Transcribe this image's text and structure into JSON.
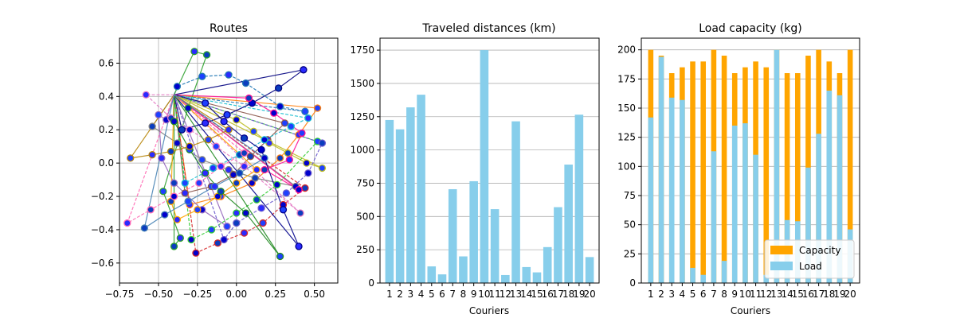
{
  "chart_data": [
    {
      "type": "scatter",
      "title": "Routes",
      "xlabel": "",
      "ylabel": "",
      "xlim": [
        -0.75,
        0.65
      ],
      "ylim": [
        -0.72,
        0.75
      ],
      "xticks": [
        -0.75,
        -0.5,
        -0.25,
        0.0,
        0.25,
        0.5
      ],
      "xtick_labels": [
        "−0.75",
        "−0.50",
        "−0.25",
        "0.00",
        "0.25",
        "0.50"
      ],
      "yticks": [
        -0.6,
        -0.4,
        -0.2,
        0.0,
        0.2,
        0.4,
        0.6
      ],
      "ytick_labels": [
        "−0.6",
        "−0.4",
        "−0.2",
        "0.0",
        "0.2",
        "0.4",
        "0.6"
      ],
      "grid": true,
      "depot": [
        -0.4,
        0.41
      ],
      "route_colors": [
        "#1f77b4",
        "#ff7f0e",
        "#2ca02c",
        "#d62728",
        "#9467bd",
        "#8c564b",
        "#e377c2",
        "#7f7f7f",
        "#bcbd22",
        "#17becf",
        "#000080",
        "#ff1493",
        "#32cd32",
        "#00008b",
        "#ffa500",
        "#6a5acd",
        "#228b22",
        "#b8860b",
        "#ff69b4",
        "#4682b4"
      ],
      "routes": [
        [
          [
            -0.38,
            0.46
          ],
          [
            -0.22,
            0.52
          ],
          [
            -0.05,
            0.53
          ],
          [
            0.06,
            0.48
          ],
          [
            0.28,
            0.34
          ],
          [
            0.44,
            0.31
          ]
        ],
        [
          [
            0.52,
            0.33
          ],
          [
            0.4,
            0.17
          ],
          [
            0.28,
            0.03
          ],
          [
            0.1,
            -0.12
          ],
          [
            -0.1,
            -0.2
          ],
          [
            -0.3,
            -0.25
          ]
        ],
        [
          [
            -0.27,
            0.67
          ],
          [
            -0.19,
            0.65
          ],
          [
            -0.31,
            0.33
          ],
          [
            -0.47,
            -0.17
          ],
          [
            -0.36,
            -0.45
          ],
          [
            -0.4,
            -0.5
          ]
        ],
        [
          [
            0.44,
            -0.15
          ],
          [
            0.3,
            -0.25
          ],
          [
            0.17,
            -0.36
          ],
          [
            0.05,
            -0.42
          ],
          [
            -0.12,
            -0.48
          ],
          [
            -0.26,
            -0.54
          ]
        ],
        [
          [
            -0.45,
            0.26
          ],
          [
            -0.5,
            0.29
          ],
          [
            -0.48,
            0.03
          ],
          [
            -0.4,
            -0.12
          ],
          [
            -0.22,
            -0.28
          ],
          [
            -0.06,
            -0.38
          ]
        ],
        [
          [
            0.31,
            0.24
          ],
          [
            0.2,
            0.14
          ],
          [
            0.09,
            0.04
          ],
          [
            -0.02,
            -0.07
          ],
          [
            -0.16,
            -0.14
          ],
          [
            -0.33,
            -0.18
          ]
        ],
        [
          [
            -0.58,
            0.41
          ],
          [
            -0.42,
            0.27
          ],
          [
            -0.3,
            0.2
          ],
          [
            -0.13,
            0.1
          ],
          [
            0.05,
            -0.02
          ],
          [
            0.41,
            -0.3
          ]
        ],
        [
          [
            -0.54,
            0.22
          ],
          [
            -0.38,
            0.12
          ],
          [
            -0.22,
            0.02
          ],
          [
            -0.05,
            -0.04
          ],
          [
            0.12,
            -0.09
          ],
          [
            0.38,
            -0.14
          ]
        ],
        [
          [
            0.0,
            0.26
          ],
          [
            0.11,
            0.19
          ],
          [
            0.21,
            0.12
          ],
          [
            0.33,
            0.06
          ],
          [
            0.45,
            0.0
          ],
          [
            0.55,
            -0.03
          ]
        ],
        [
          [
            -0.33,
            -0.12
          ],
          [
            -0.15,
            -0.03
          ],
          [
            0.02,
            0.05
          ],
          [
            0.18,
            0.14
          ],
          [
            0.35,
            0.22
          ],
          [
            0.46,
            0.27
          ]
        ],
        [
          [
            0.43,
            0.56
          ],
          [
            0.27,
            0.45
          ],
          [
            0.1,
            0.36
          ],
          [
            -0.06,
            0.29
          ],
          [
            -0.2,
            0.24
          ],
          [
            -0.35,
            0.2
          ]
        ],
        [
          [
            0.08,
            0.39
          ],
          [
            0.24,
            0.3
          ],
          [
            0.42,
            0.18
          ],
          [
            0.34,
            0.02
          ],
          [
            0.18,
            -0.04
          ],
          [
            0.4,
            -0.16
          ]
        ],
        [
          [
            -0.29,
            -0.46
          ],
          [
            -0.16,
            -0.4
          ],
          [
            0.0,
            -0.3
          ],
          [
            0.13,
            -0.22
          ],
          [
            0.26,
            -0.13
          ],
          [
            0.52,
            0.13
          ]
        ],
        [
          [
            -0.2,
            0.36
          ],
          [
            -0.08,
            0.25
          ],
          [
            0.05,
            0.15
          ],
          [
            0.16,
            0.08
          ],
          [
            0.3,
            -0.28
          ],
          [
            0.4,
            -0.5
          ]
        ],
        [
          [
            0.13,
            -0.04
          ],
          [
            0.0,
            -0.12
          ],
          [
            -0.12,
            -0.2
          ],
          [
            -0.25,
            -0.28
          ],
          [
            -0.38,
            -0.34
          ],
          [
            -0.42,
            -0.23
          ]
        ],
        [
          [
            0.55,
            0.12
          ],
          [
            0.46,
            -0.06
          ],
          [
            0.32,
            -0.18
          ],
          [
            0.16,
            -0.27
          ],
          [
            0.0,
            -0.36
          ],
          [
            -0.08,
            -0.46
          ]
        ],
        [
          [
            -0.4,
            0.25
          ],
          [
            -0.3,
            0.08
          ],
          [
            -0.2,
            -0.06
          ],
          [
            -0.1,
            -0.17
          ],
          [
            0.06,
            -0.3
          ],
          [
            0.28,
            -0.56
          ]
        ],
        [
          [
            -0.68,
            0.03
          ],
          [
            -0.54,
            0.05
          ],
          [
            -0.42,
            0.07
          ],
          [
            -0.3,
            0.1
          ],
          [
            -0.18,
            0.14
          ],
          [
            -0.05,
            0.2
          ]
        ],
        [
          [
            -0.7,
            -0.36
          ],
          [
            -0.55,
            -0.28
          ],
          [
            -0.4,
            -0.2
          ],
          [
            -0.24,
            -0.12
          ],
          [
            -0.1,
            -0.02
          ],
          [
            0.05,
            0.06
          ]
        ],
        [
          [
            -0.59,
            -0.39
          ],
          [
            -0.46,
            -0.31
          ],
          [
            -0.31,
            -0.23
          ],
          [
            -0.14,
            -0.14
          ],
          [
            0.02,
            -0.06
          ],
          [
            0.18,
            0.03
          ]
        ]
      ]
    },
    {
      "type": "bar",
      "title": "Traveled distances (km)",
      "xlabel": "Couriers",
      "ylabel": "",
      "categories": [
        "1",
        "2",
        "3",
        "4",
        "5",
        "6",
        "7",
        "8",
        "9",
        "10",
        "11",
        "12",
        "13",
        "14",
        "15",
        "16",
        "17",
        "18",
        "19",
        "20"
      ],
      "values": [
        1225,
        1155,
        1320,
        1415,
        125,
        65,
        705,
        200,
        765,
        1750,
        555,
        60,
        1215,
        120,
        80,
        270,
        570,
        890,
        1265,
        195
      ],
      "ylim": [
        0,
        1840
      ],
      "yticks": [
        0,
        250,
        500,
        750,
        1000,
        1250,
        1500,
        1750
      ],
      "grid": "y",
      "bar_color": "#87ceeb"
    },
    {
      "type": "bar",
      "title": "Load capacity (kg)",
      "xlabel": "Couriers",
      "ylabel": "",
      "categories": [
        "1",
        "2",
        "3",
        "4",
        "5",
        "6",
        "7",
        "8",
        "9",
        "10",
        "11",
        "12",
        "13",
        "14",
        "15",
        "16",
        "17",
        "18",
        "19",
        "20"
      ],
      "series": [
        {
          "name": "Capacity",
          "color": "#ffa500",
          "values": [
            200,
            195,
            180,
            185,
            190,
            190,
            200,
            195,
            180,
            185,
            190,
            185,
            200,
            180,
            180,
            195,
            200,
            190,
            180,
            200
          ]
        },
        {
          "name": "Load",
          "color": "#87ceeb",
          "values": [
            142,
            194,
            159,
            157,
            13,
            7,
            113,
            19,
            135,
            137,
            110,
            7,
            200,
            54,
            53,
            99,
            128,
            165,
            161,
            46
          ]
        }
      ],
      "ylim": [
        0,
        210
      ],
      "yticks": [
        0,
        25,
        50,
        75,
        100,
        125,
        150,
        175,
        200
      ],
      "grid": "y",
      "legend": "lower-right"
    }
  ]
}
